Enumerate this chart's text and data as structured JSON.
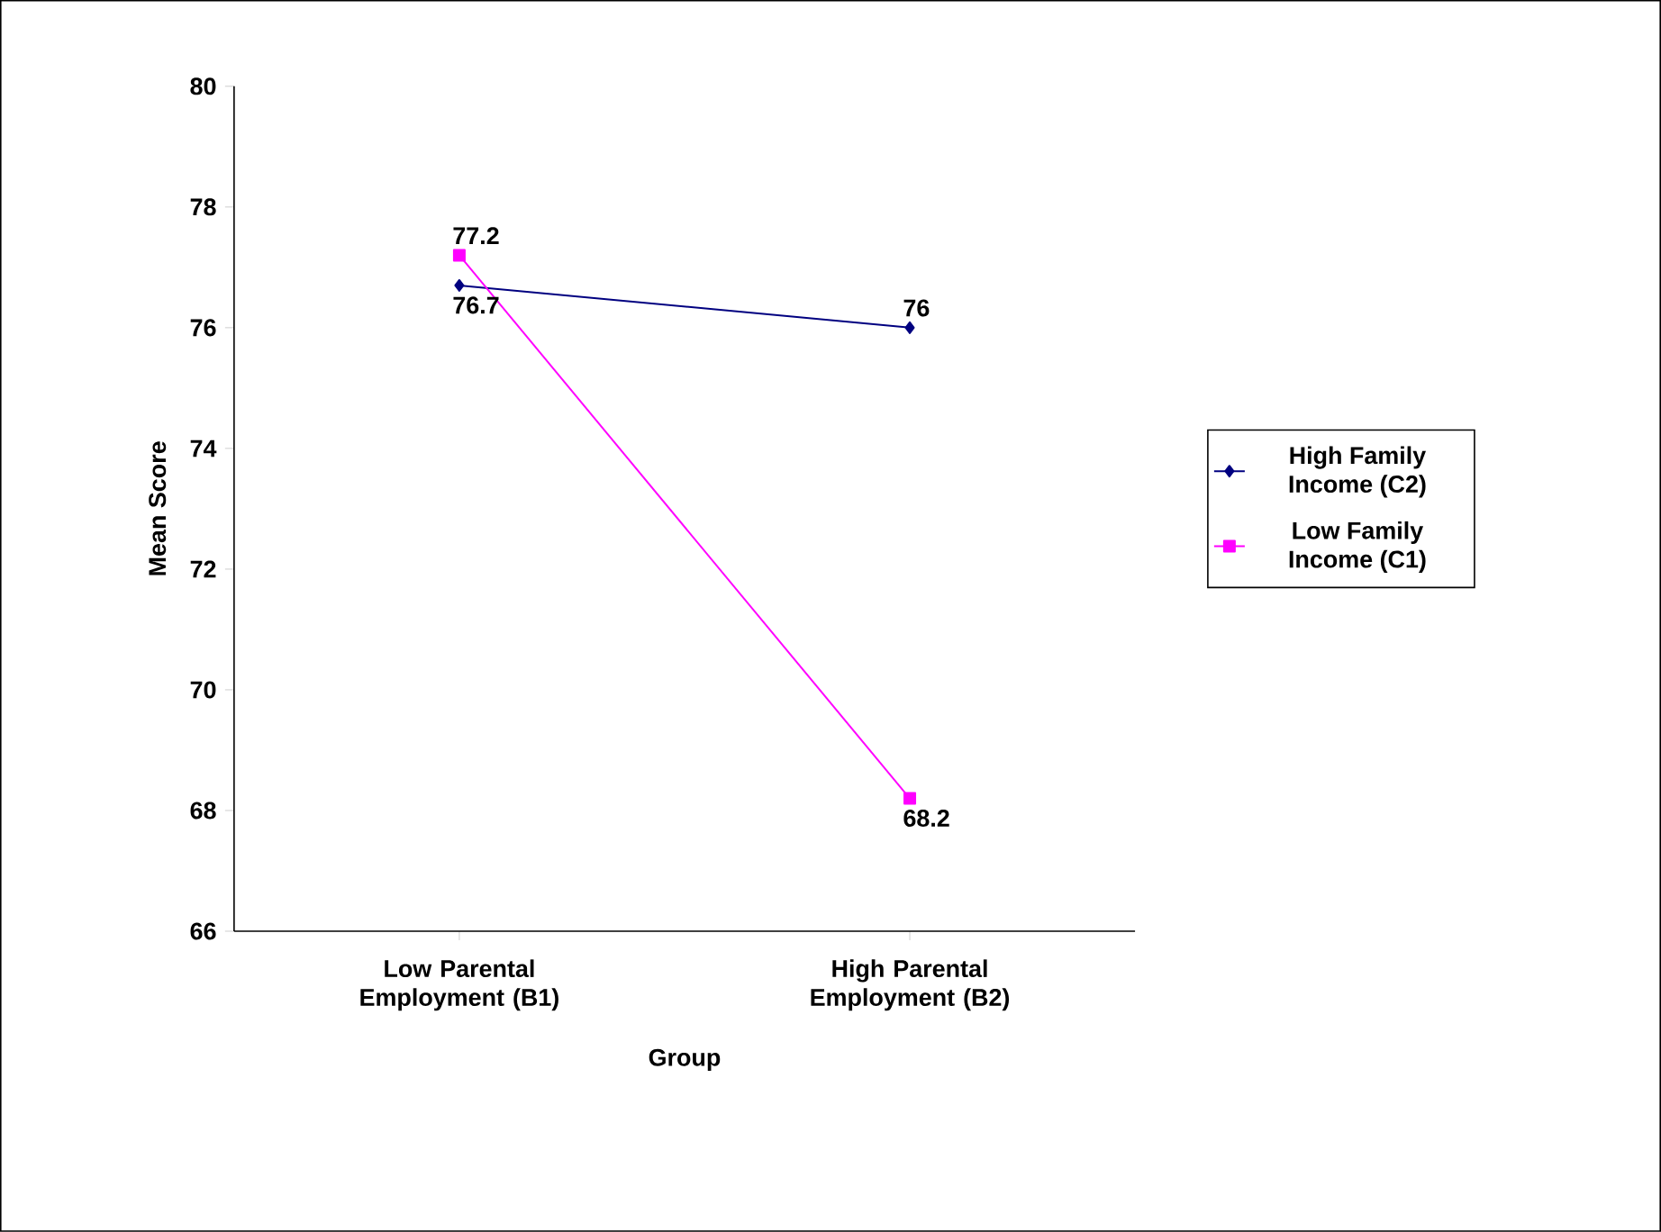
{
  "chart_data": {
    "type": "line",
    "xlabel": "Group",
    "ylabel": "Mean Score",
    "categories": [
      "Low Parental Employment (B1)",
      "High Parental Employment (B2)"
    ],
    "series": [
      {
        "name": "High Family Income (C2)",
        "color": "#000080",
        "marker": "diamond",
        "values": [
          76.7,
          76
        ]
      },
      {
        "name": "Low Family Income (C1)",
        "color": "#ff00ff",
        "marker": "square",
        "values": [
          77.2,
          68.2
        ]
      }
    ],
    "ylim": [
      66,
      80
    ],
    "yticks": [
      66,
      68,
      70,
      72,
      74,
      76,
      78,
      80
    ],
    "data_labels": true,
    "legend": "right",
    "grid": false
  }
}
